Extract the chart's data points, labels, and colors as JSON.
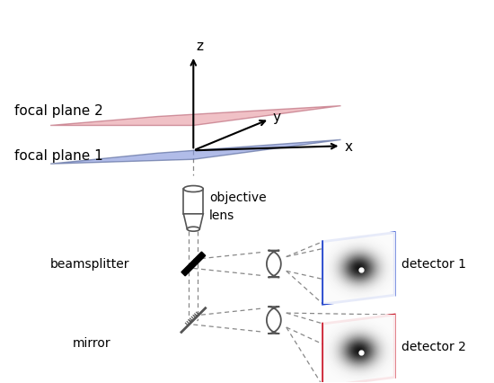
{
  "bg_color": "#ffffff",
  "focal_plane1_color": "#8899dd",
  "focal_plane2_color": "#e8a0a8",
  "focal_plane1_edge": "#556699",
  "focal_plane2_edge": "#bb6677",
  "detector1_border": "#2244cc",
  "detector2_border": "#cc2233",
  "text_color": "#000000",
  "dashed_color": "#888888",
  "axis_color": "#000000",
  "component_color": "#555555",
  "labels": {
    "focal_plane1": "focal plane 1",
    "focal_plane2": "focal plane 2",
    "objective": "objective\nlens",
    "beamsplitter": "beamsplitter",
    "mirror": "mirror",
    "detector1": "detector 1",
    "detector2": "detector 2",
    "axis_x": "x",
    "axis_y": "y",
    "axis_z": "z"
  }
}
